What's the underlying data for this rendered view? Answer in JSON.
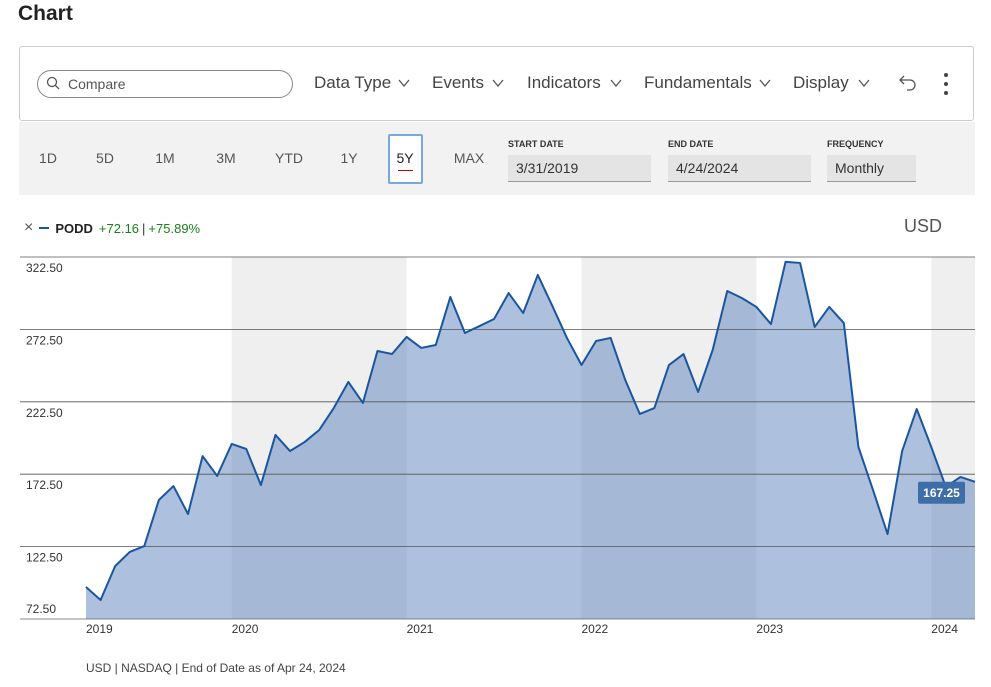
{
  "ui": {
    "title": "Chart",
    "compare": "Compare",
    "menus": [
      "Data Type",
      "Events",
      "Indicators",
      "Fundamentals",
      "Display"
    ],
    "ranges": [
      "1D",
      "5D",
      "1M",
      "3M",
      "YTD",
      "1Y",
      "5Y",
      "MAX"
    ],
    "start_date_label": "START DATE",
    "start_date": "3/31/2019",
    "end_date_label": "END DATE",
    "end_date": "4/24/2024",
    "frequency_label": "FREQUENCY",
    "frequency": "Monthly",
    "legend_change": "+72.16",
    "legend_separator": "|",
    "legend_change_pct": "+75.89%",
    "currency": "USD",
    "footer": "USD | NASDAQ | End of Date as of Apr 24, 2024"
  },
  "chart_data": {
    "type": "area",
    "categories": [
      "2019",
      null,
      null,
      null,
      null,
      null,
      null,
      null,
      null,
      null,
      "2020",
      null,
      null,
      null,
      null,
      null,
      null,
      null,
      null,
      null,
      null,
      null,
      "2021",
      null,
      null,
      null,
      null,
      null,
      null,
      null,
      null,
      null,
      null,
      null,
      "2022",
      null,
      null,
      null,
      null,
      null,
      null,
      null,
      null,
      null,
      null,
      null,
      "2023",
      null,
      null,
      null,
      null,
      null,
      null,
      null,
      null,
      null,
      null,
      null,
      "2024",
      null,
      null,
      null
    ],
    "series": [
      {
        "name": "PODD",
        "color": "#1a56a0",
        "values": [
          94.6,
          85.6,
          109,
          118.8,
          122.9,
          154.7,
          164.3,
          145,
          185,
          171.3,
          193.4,
          189.9,
          165,
          199.6,
          188.5,
          194.7,
          203,
          218.2,
          236.2,
          221.7,
          257.6,
          255.5,
          267.3,
          259.7,
          261.7,
          294.9,
          270,
          274.8,
          279.7,
          297.6,
          283.8,
          310.1,
          288.7,
          266.6,
          247.9,
          264.5,
          266.6,
          237.6,
          214.1,
          218.2,
          247.9,
          255.5,
          229.3,
          258.3,
          299,
          294.2,
          288,
          276.2,
          319.1,
          318.4,
          274.2,
          288,
          276.9,
          191.3,
          161.6,
          131.2,
          188.5,
          217.5,
          191.3,
          163.7,
          170.6,
          167.25
        ]
      }
    ],
    "ylim": [
      72.5,
      322.5
    ],
    "yticks": [
      {
        "value": 72.5,
        "label": "72.50"
      },
      {
        "value": 122.5,
        "label": "122.50"
      },
      {
        "value": 172.5,
        "label": "172.50"
      },
      {
        "value": 222.5,
        "label": "222.50"
      },
      {
        "value": 272.5,
        "label": "272.50"
      },
      {
        "value": 322.5,
        "label": "322.50"
      }
    ],
    "grid": true
  }
}
